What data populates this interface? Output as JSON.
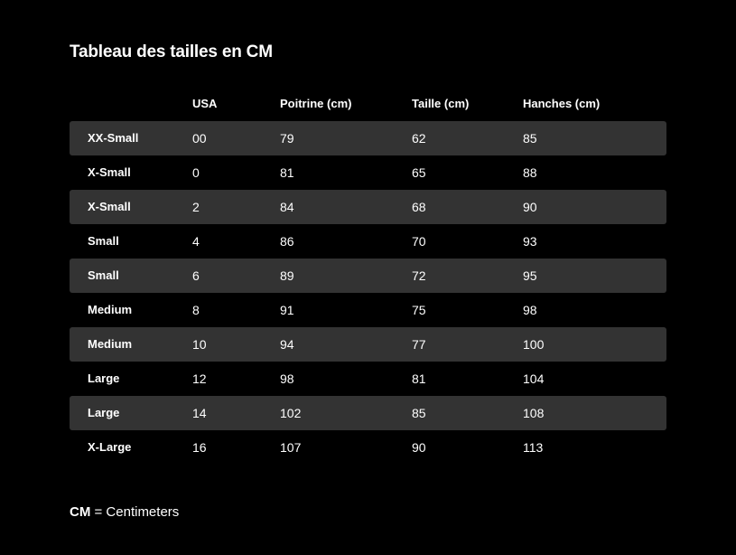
{
  "page": {
    "title": "Tableau des tailles en CM",
    "background_color": "#000000",
    "row_highlight_color": "#333333",
    "text_color": "#ffffff"
  },
  "table": {
    "headers": [
      "",
      "USA",
      "Poitrine (cm)",
      "Taille (cm)",
      "Hanches (cm)"
    ],
    "rows": [
      [
        "XX-Small",
        "00",
        "79",
        "62",
        "85"
      ],
      [
        "X-Small",
        "0",
        "81",
        "65",
        "88"
      ],
      [
        "X-Small",
        "2",
        "84",
        "68",
        "90"
      ],
      [
        "Small",
        "4",
        "86",
        "70",
        "93"
      ],
      [
        "Small",
        "6",
        "89",
        "72",
        "95"
      ],
      [
        "Medium",
        "8",
        "91",
        "75",
        "98"
      ],
      [
        "Medium",
        "10",
        "94",
        "77",
        "100"
      ],
      [
        "Large",
        "12",
        "98",
        "81",
        "104"
      ],
      [
        "Large",
        "14",
        "102",
        "85",
        "108"
      ],
      [
        "X-Large",
        "16",
        "107",
        "90",
        "113"
      ]
    ]
  },
  "footnote": {
    "abbr": "CM",
    "text": " = Centimeters"
  }
}
